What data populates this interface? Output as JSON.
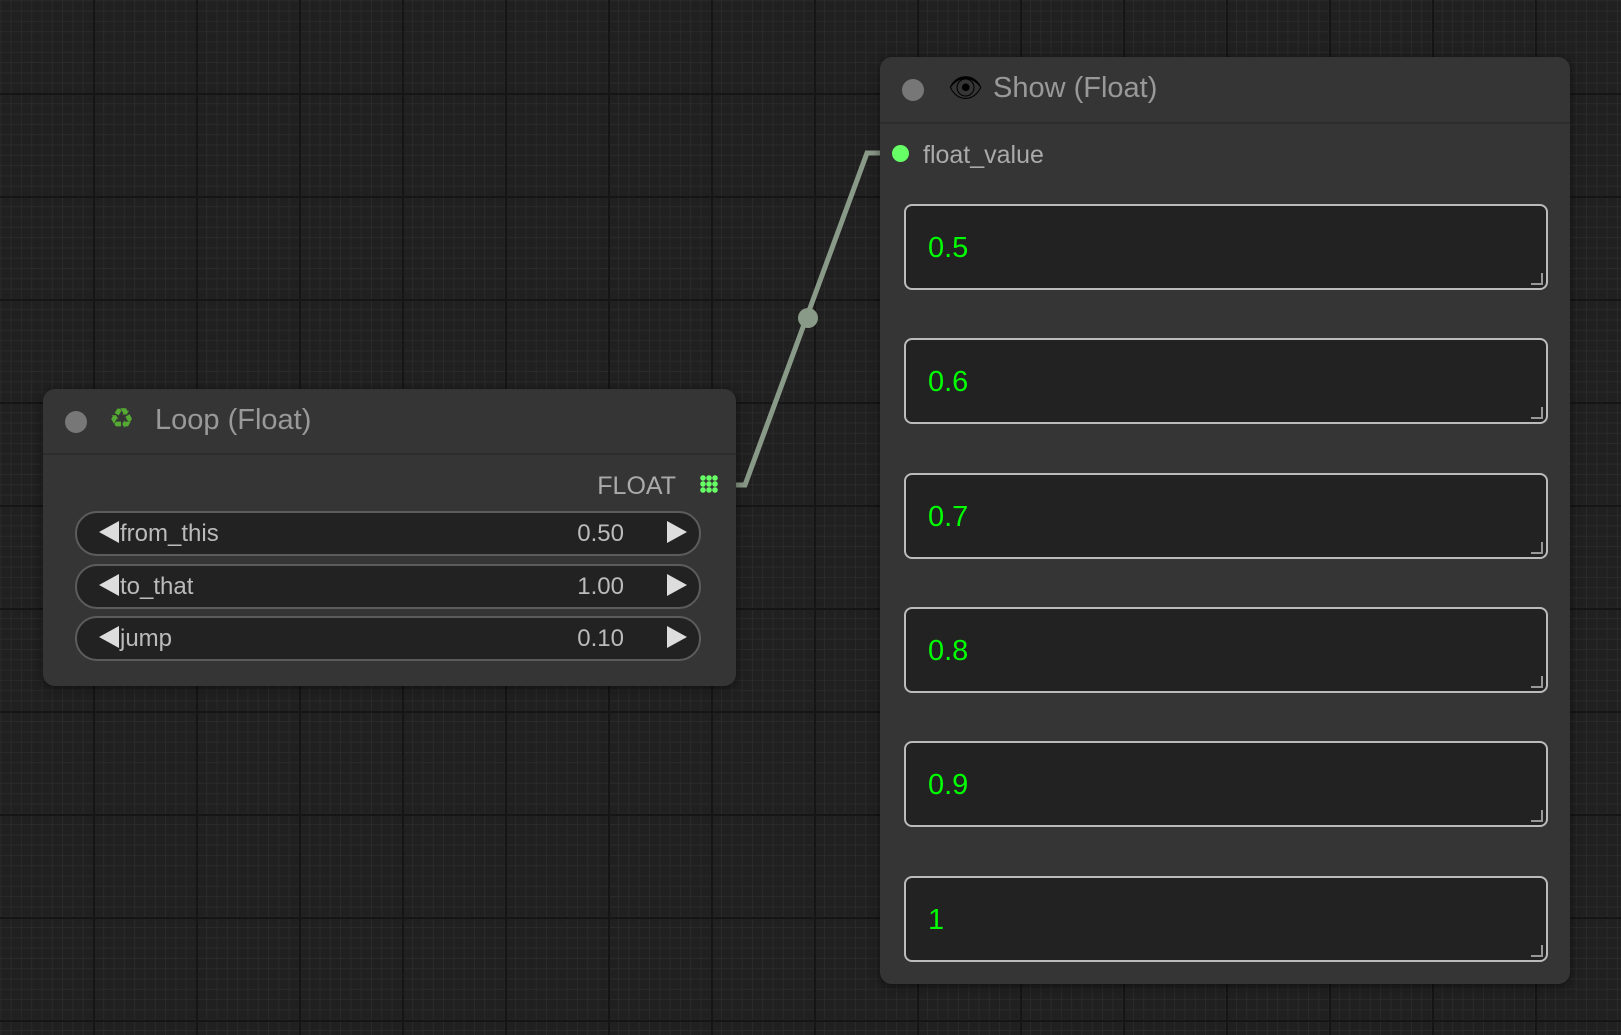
{
  "loop_node": {
    "title": "Loop (Float)",
    "icon": "recycle-icon",
    "output_label": "FLOAT",
    "widgets": [
      {
        "label": "from_this",
        "value": "0.50"
      },
      {
        "label": "to_that",
        "value": "1.00"
      },
      {
        "label": "jump",
        "value": "0.10"
      }
    ]
  },
  "show_node": {
    "title": "Show (Float)",
    "icon": "eye-icon",
    "input_label": "float_value",
    "values": [
      "0.5",
      "0.6",
      "0.7",
      "0.8",
      "0.9",
      "1"
    ]
  },
  "colors": {
    "link": "#8a9a88",
    "slot": "#6f6",
    "value_text": "#00ff00"
  }
}
